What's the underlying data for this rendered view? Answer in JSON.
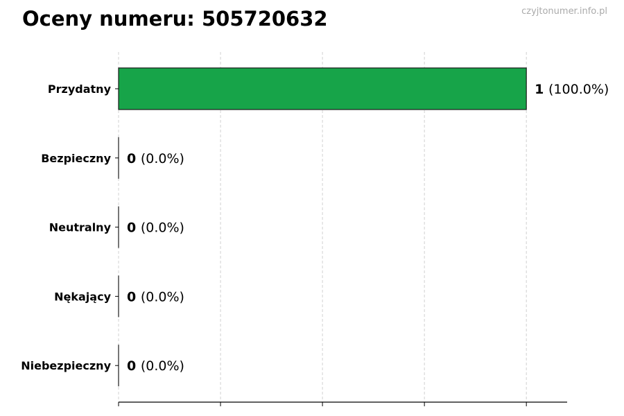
{
  "watermark": "czyjtonumer.info.pl",
  "chart_data": {
    "type": "bar",
    "orientation": "horizontal",
    "title": "Oceny numeru: 505720632",
    "categories": [
      "Przydatny",
      "Bezpieczny",
      "Neutralny",
      "Nękający",
      "Niebezpieczny"
    ],
    "values": [
      1,
      0,
      0,
      0,
      0
    ],
    "percent_labels": [
      "(100.0%)",
      "(0.0%)",
      "(0.0%)",
      "(0.0%)",
      "(0.0%)"
    ],
    "bar_color": "#17a449",
    "xlim": [
      0,
      1.1
    ],
    "xticks": [
      0,
      0.25,
      0.5,
      0.75,
      1.0
    ],
    "xtick_labels_shown": false,
    "grid": "x, dashed",
    "xlabel": "",
    "ylabel": ""
  }
}
